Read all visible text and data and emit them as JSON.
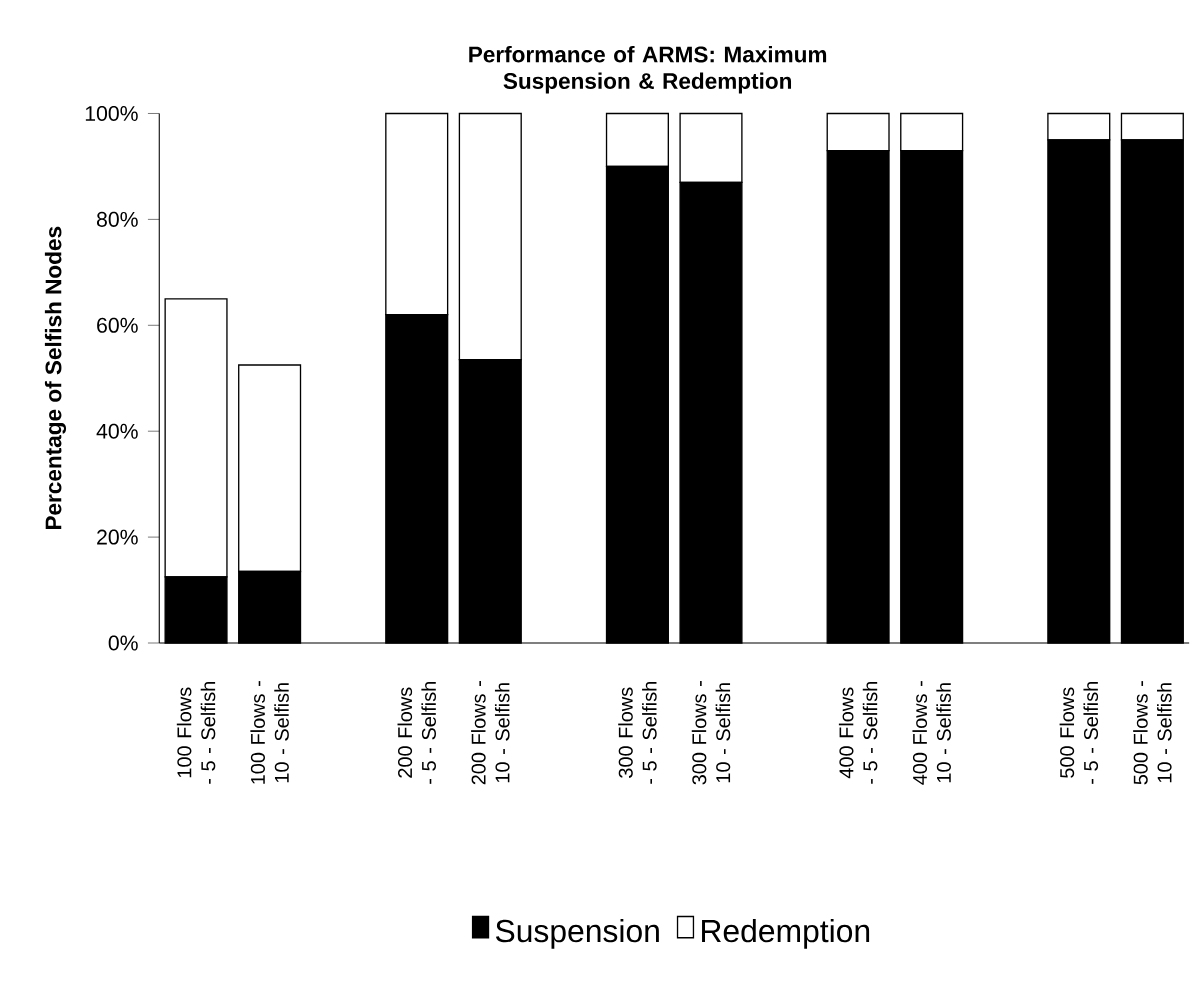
{
  "chart_data": {
    "type": "bar",
    "stacked": true,
    "title": "Performance of ARMS: Maximum Suspension & Redemption",
    "ylabel": "Percentage of Selfish Nodes",
    "categories": [
      "100 Flows - 5 - Selfish",
      "100 Flows - 10 - Selfish",
      null,
      "200 Flows - 5 - Selfish",
      "200 Flows - 10 - Selfish",
      null,
      "300 Flows - 5 - Selfish",
      "300 Flows - 10 - Selfish",
      null,
      "400 Flows - 5 - Selfish",
      "400 Flows - 10 - Selfish",
      null,
      "500 Flows - 5 - Selfish",
      "500 Flows - 10 - Selfish"
    ],
    "series": [
      {
        "name": "Suspension",
        "color": "#000000",
        "values": [
          12.5,
          13.5,
          null,
          62,
          53.5,
          null,
          90,
          87,
          null,
          93,
          93,
          null,
          95,
          95
        ]
      },
      {
        "name": "Redemption",
        "color": "#ffffff",
        "values": [
          52.5,
          39,
          null,
          38,
          46.5,
          null,
          10,
          13,
          null,
          7,
          7,
          null,
          5,
          5
        ]
      }
    ],
    "ylim": [
      0,
      100
    ],
    "yticks": [
      {
        "value": 0,
        "label": "0%"
      },
      {
        "value": 20,
        "label": "20%"
      },
      {
        "value": 40,
        "label": "40%"
      },
      {
        "value": 60,
        "label": "60%"
      },
      {
        "value": 80,
        "label": "80%"
      },
      {
        "value": 100,
        "label": "100%"
      }
    ],
    "grid": false,
    "legend": "bottom"
  }
}
